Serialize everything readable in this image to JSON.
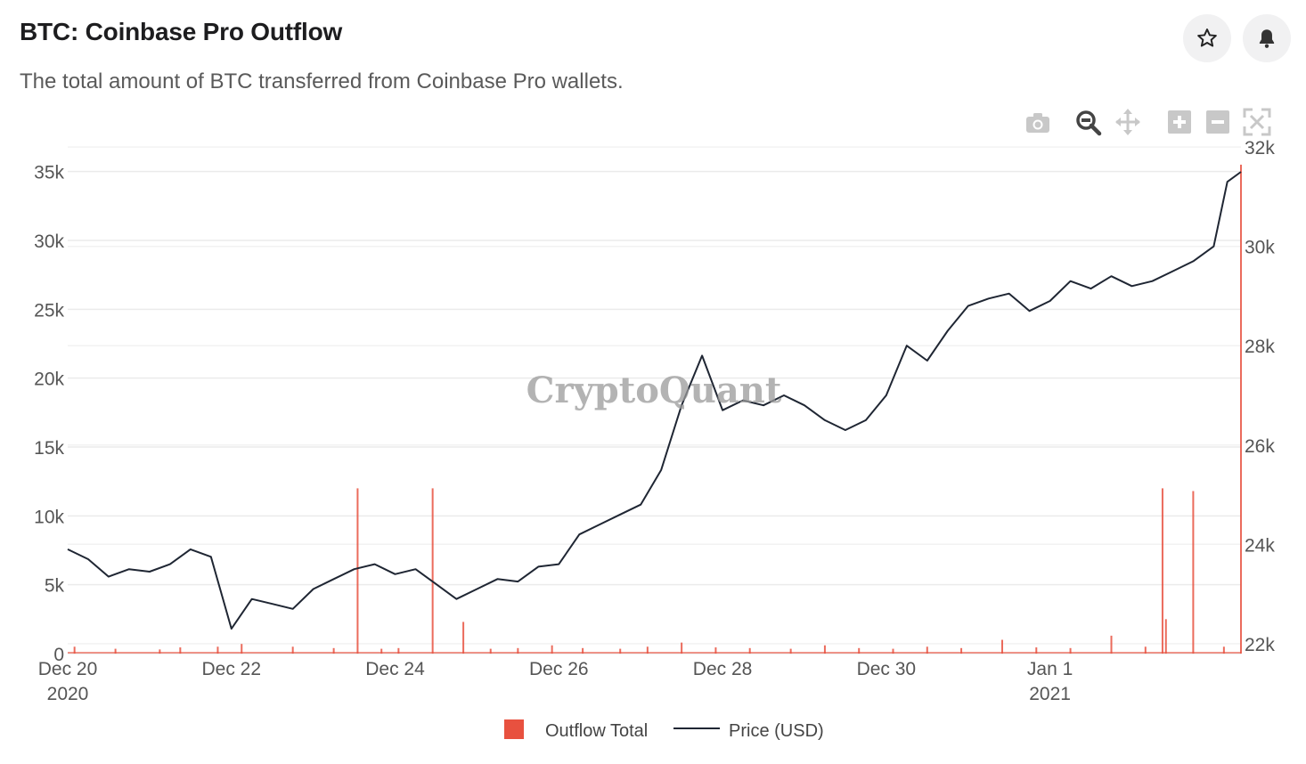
{
  "header": {
    "title": "BTC: Coinbase Pro Outflow",
    "subtitle": "The total amount of BTC transferred from Coinbase Pro wallets.",
    "star_icon": "star-icon",
    "bell_icon": "bell-icon"
  },
  "toolbar": {
    "icons": [
      "camera-icon",
      "zoom-icon",
      "pan-icon",
      "zoom-in-icon",
      "zoom-out-icon",
      "autoscale-icon"
    ]
  },
  "watermark": "CryptoQuant",
  "chart_data": {
    "type": "bar+line",
    "title": "",
    "xlabel": "",
    "ylabel": "",
    "x_range": [
      "2020-12-20",
      "2021-01-03T08:00"
    ],
    "x_ticks": [
      {
        "date": "2020-12-20",
        "label": "Dec 20",
        "sub": "2020"
      },
      {
        "date": "2020-12-22",
        "label": "Dec 22",
        "sub": ""
      },
      {
        "date": "2020-12-24",
        "label": "Dec 24",
        "sub": ""
      },
      {
        "date": "2020-12-26",
        "label": "Dec 26",
        "sub": ""
      },
      {
        "date": "2020-12-28",
        "label": "Dec 28",
        "sub": ""
      },
      {
        "date": "2020-12-30",
        "label": "Dec 30",
        "sub": ""
      },
      {
        "date": "2021-01-01",
        "label": "Jan 1",
        "sub": "2021"
      }
    ],
    "y_left": {
      "range": [
        0,
        37500
      ],
      "ticks": [
        0,
        5000,
        10000,
        15000,
        20000,
        25000,
        30000,
        35000
      ],
      "tick_labels": [
        "0",
        "5k",
        "10k",
        "15k",
        "20k",
        "25k",
        "30k",
        "35k"
      ]
    },
    "y_right": {
      "range": [
        21800,
        32200
      ],
      "ticks": [
        22000,
        24000,
        26000,
        28000,
        30000,
        32000
      ],
      "tick_labels": [
        "22k",
        "24k",
        "26k",
        "28k",
        "30k",
        "32k"
      ]
    },
    "grid": true,
    "legend_position": "bottom-center",
    "series": [
      {
        "name": "Outflow Total",
        "axis": "left",
        "color": "#e8513f",
        "points": [
          [
            "2020-12-20T02:00",
            500
          ],
          [
            "2020-12-20T14:00",
            350
          ],
          [
            "2020-12-21T03:00",
            300
          ],
          [
            "2020-12-21T09:00",
            450
          ],
          [
            "2020-12-21T20:00",
            500
          ],
          [
            "2020-12-22T03:00",
            700
          ],
          [
            "2020-12-22T18:00",
            500
          ],
          [
            "2020-12-23T06:00",
            400
          ],
          [
            "2020-12-23T13:00",
            12000
          ],
          [
            "2020-12-23T20:00",
            350
          ],
          [
            "2020-12-24T01:00",
            400
          ],
          [
            "2020-12-24T11:00",
            12000
          ],
          [
            "2020-12-24T20:00",
            2300
          ],
          [
            "2020-12-25T04:00",
            350
          ],
          [
            "2020-12-25T12:00",
            400
          ],
          [
            "2020-12-25T22:00",
            600
          ],
          [
            "2020-12-26T07:00",
            400
          ],
          [
            "2020-12-26T18:00",
            350
          ],
          [
            "2020-12-27T02:00",
            500
          ],
          [
            "2020-12-27T12:00",
            800
          ],
          [
            "2020-12-27T22:00",
            450
          ],
          [
            "2020-12-28T08:00",
            400
          ],
          [
            "2020-12-28T20:00",
            350
          ],
          [
            "2020-12-29T06:00",
            600
          ],
          [
            "2020-12-29T16:00",
            400
          ],
          [
            "2020-12-30T02:00",
            350
          ],
          [
            "2020-12-30T12:00",
            500
          ],
          [
            "2020-12-30T22:00",
            400
          ],
          [
            "2020-12-31T10:00",
            1000
          ],
          [
            "2020-12-31T20:00",
            450
          ],
          [
            "2021-01-01T06:00",
            400
          ],
          [
            "2021-01-01T18:00",
            1300
          ],
          [
            "2021-01-02T04:00",
            500
          ],
          [
            "2021-01-02T09:00",
            12000
          ],
          [
            "2021-01-02T10:00",
            2500
          ],
          [
            "2021-01-02T18:00",
            11800
          ],
          [
            "2021-01-03T03:00",
            500
          ],
          [
            "2021-01-03T08:00",
            35500
          ]
        ]
      },
      {
        "name": "Price (USD)",
        "axis": "right",
        "color": "#1f2633",
        "points": [
          [
            "2020-12-20T00:00",
            23900
          ],
          [
            "2020-12-20T06:00",
            23700
          ],
          [
            "2020-12-20T12:00",
            23350
          ],
          [
            "2020-12-20T18:00",
            23500
          ],
          [
            "2020-12-21T00:00",
            23450
          ],
          [
            "2020-12-21T06:00",
            23600
          ],
          [
            "2020-12-21T12:00",
            23900
          ],
          [
            "2020-12-21T18:00",
            23750
          ],
          [
            "2020-12-22T00:00",
            22300
          ],
          [
            "2020-12-22T06:00",
            22900
          ],
          [
            "2020-12-22T12:00",
            22800
          ],
          [
            "2020-12-22T18:00",
            22700
          ],
          [
            "2020-12-23T00:00",
            23100
          ],
          [
            "2020-12-23T06:00",
            23300
          ],
          [
            "2020-12-23T12:00",
            23500
          ],
          [
            "2020-12-23T18:00",
            23600
          ],
          [
            "2020-12-24T00:00",
            23400
          ],
          [
            "2020-12-24T06:00",
            23500
          ],
          [
            "2020-12-24T12:00",
            23200
          ],
          [
            "2020-12-24T18:00",
            22900
          ],
          [
            "2020-12-25T00:00",
            23100
          ],
          [
            "2020-12-25T06:00",
            23300
          ],
          [
            "2020-12-25T12:00",
            23250
          ],
          [
            "2020-12-25T18:00",
            23550
          ],
          [
            "2020-12-26T00:00",
            23600
          ],
          [
            "2020-12-26T06:00",
            24200
          ],
          [
            "2020-12-26T12:00",
            24400
          ],
          [
            "2020-12-26T18:00",
            24600
          ],
          [
            "2020-12-27T00:00",
            24800
          ],
          [
            "2020-12-27T06:00",
            25500
          ],
          [
            "2020-12-27T12:00",
            26800
          ],
          [
            "2020-12-27T18:00",
            27800
          ],
          [
            "2020-12-28T00:00",
            26700
          ],
          [
            "2020-12-28T06:00",
            26900
          ],
          [
            "2020-12-28T12:00",
            26800
          ],
          [
            "2020-12-28T18:00",
            27000
          ],
          [
            "2020-12-29T00:00",
            26800
          ],
          [
            "2020-12-29T06:00",
            26500
          ],
          [
            "2020-12-29T12:00",
            26300
          ],
          [
            "2020-12-29T18:00",
            26500
          ],
          [
            "2020-12-30T00:00",
            27000
          ],
          [
            "2020-12-30T06:00",
            28000
          ],
          [
            "2020-12-30T12:00",
            27700
          ],
          [
            "2020-12-30T18:00",
            28300
          ],
          [
            "2020-12-31T00:00",
            28800
          ],
          [
            "2020-12-31T06:00",
            28950
          ],
          [
            "2020-12-31T12:00",
            29050
          ],
          [
            "2020-12-31T18:00",
            28700
          ],
          [
            "2021-01-01T00:00",
            28900
          ],
          [
            "2021-01-01T06:00",
            29300
          ],
          [
            "2021-01-01T12:00",
            29150
          ],
          [
            "2021-01-01T18:00",
            29400
          ],
          [
            "2021-01-02T00:00",
            29200
          ],
          [
            "2021-01-02T06:00",
            29300
          ],
          [
            "2021-01-02T12:00",
            29500
          ],
          [
            "2021-01-02T18:00",
            29700
          ],
          [
            "2021-01-03T00:00",
            30000
          ],
          [
            "2021-01-03T04:00",
            31300
          ],
          [
            "2021-01-03T08:00",
            31500
          ]
        ]
      }
    ]
  }
}
